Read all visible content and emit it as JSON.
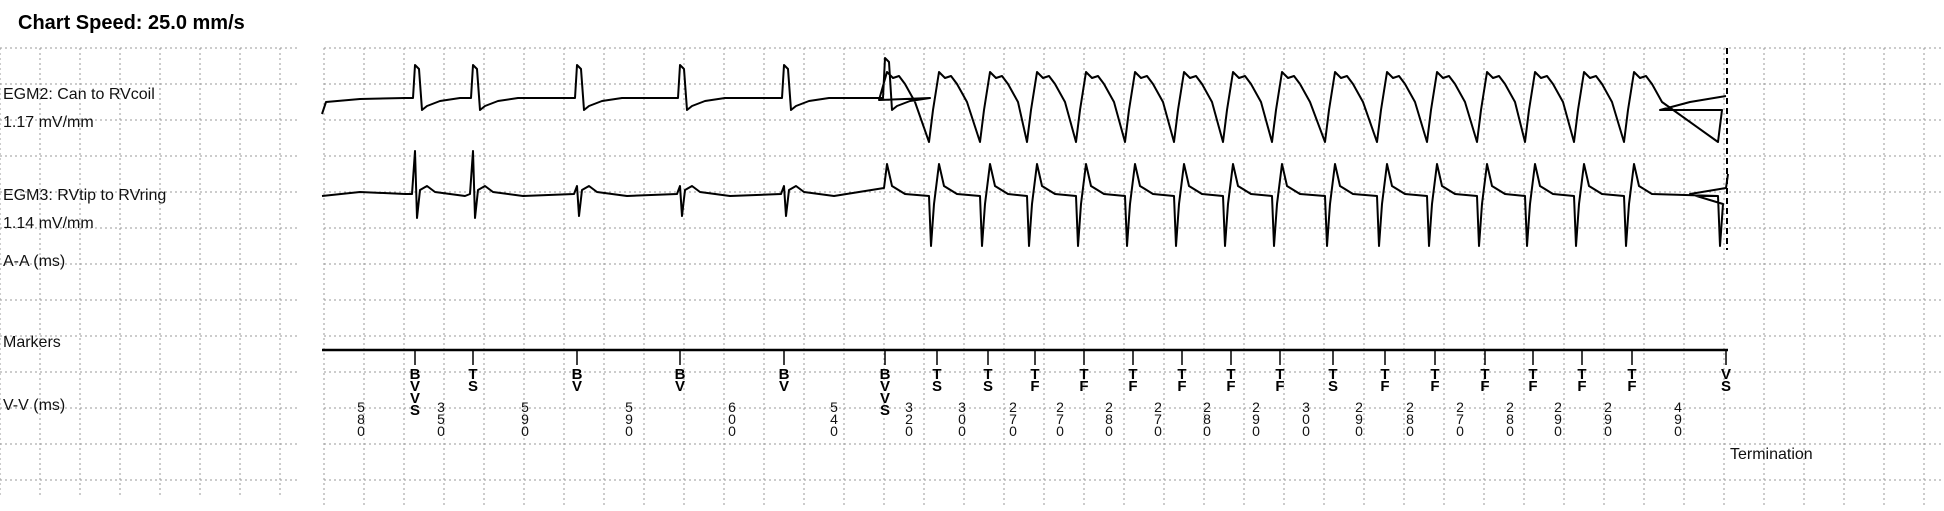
{
  "header": {
    "chart_speed": "Chart Speed: 25.0 mm/s"
  },
  "labels": {
    "egm2_name": "EGM2: Can to RVcoil",
    "egm2_gain": "1.17 mV/mm",
    "egm3_name": "EGM3: RVtip to RVring",
    "egm3_gain": "1.14 mV/mm",
    "aa": "A-A (ms)",
    "markers": "Markers",
    "vv": "V-V (ms)",
    "termination": "Termination"
  },
  "chart_data": {
    "type": "line",
    "title": "Chart Speed: 25.0 mm/s",
    "xlabel": "",
    "ylabel": "",
    "grid": true,
    "series": [
      {
        "name": "EGM2: Can to RVcoil",
        "gain": "1.17 mV/mm"
      },
      {
        "name": "EGM3: RVtip to RVring",
        "gain": "1.14 mV/mm"
      }
    ],
    "beats": [
      {
        "marker": "BV VS",
        "kind": "sinus"
      },
      {
        "marker": "TS",
        "kind": "sinus"
      },
      {
        "marker": "BV",
        "kind": "sinus"
      },
      {
        "marker": "BV",
        "kind": "sinus"
      },
      {
        "marker": "BV",
        "kind": "sinus"
      },
      {
        "marker": "BV VS",
        "kind": "transition"
      },
      {
        "marker": "TS",
        "kind": "vt"
      },
      {
        "marker": "TS",
        "kind": "vt"
      },
      {
        "marker": "TF",
        "kind": "vt"
      },
      {
        "marker": "TF",
        "kind": "vt"
      },
      {
        "marker": "TF",
        "kind": "vt"
      },
      {
        "marker": "TF",
        "kind": "vt"
      },
      {
        "marker": "TF",
        "kind": "vt"
      },
      {
        "marker": "TF",
        "kind": "vt"
      },
      {
        "marker": "TS",
        "kind": "vt"
      },
      {
        "marker": "TF",
        "kind": "vt"
      },
      {
        "marker": "TF",
        "kind": "vt"
      },
      {
        "marker": "TF",
        "kind": "vt"
      },
      {
        "marker": "TF",
        "kind": "vt"
      },
      {
        "marker": "TF",
        "kind": "vt"
      },
      {
        "marker": "TF",
        "kind": "vt"
      },
      {
        "marker": "VS",
        "kind": "end"
      }
    ],
    "vv_intervals_ms": [
      580,
      350,
      590,
      590,
      600,
      540,
      320,
      300,
      270,
      270,
      280,
      270,
      280,
      290,
      300,
      290,
      280,
      270,
      280,
      290,
      290,
      490
    ],
    "end_event": "Termination"
  }
}
